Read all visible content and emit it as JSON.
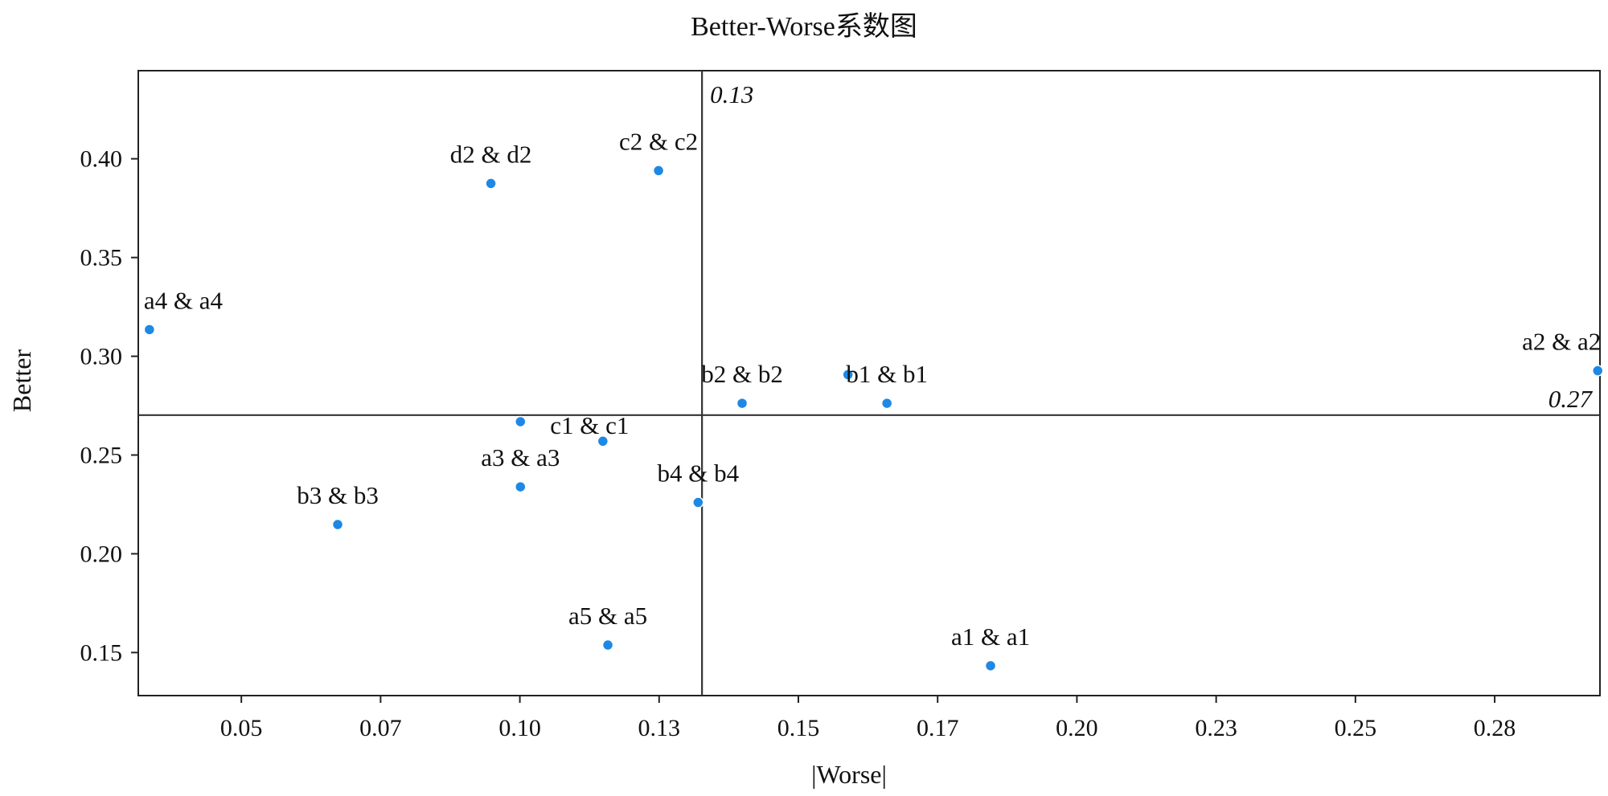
{
  "chart_data": {
    "type": "scatter",
    "title": "Better-Worse系数图",
    "xlabel": "|Worse|",
    "ylabel": "Better",
    "xlim": [
      0.0315,
      0.2939
    ],
    "ylim": [
      0.1282,
      0.4446
    ],
    "x_ticks": [
      0.05,
      0.075,
      0.1,
      0.125,
      0.15,
      0.175,
      0.2,
      0.225,
      0.25,
      0.275
    ],
    "x_tick_labels": [
      "0.05",
      "0.07",
      "0.10",
      "0.13",
      "0.15",
      "0.17",
      "0.20",
      "0.23",
      "0.25",
      "0.28"
    ],
    "y_ticks": [
      0.15,
      0.2,
      0.25,
      0.3,
      0.35,
      0.4
    ],
    "y_tick_labels": [
      "0.15",
      "0.20",
      "0.25",
      "0.30",
      "0.35",
      "0.40"
    ],
    "grid": false,
    "point_color": "#1e88e5",
    "reference_lines": {
      "vertical": {
        "value": 0.1327,
        "label": "0.13"
      },
      "horizontal": {
        "value": 0.2702,
        "label": "0.27"
      }
    },
    "points": [
      {
        "label": "a4 & a4",
        "x": 0.0335,
        "y": 0.3135
      },
      {
        "label": "d2 & d2",
        "x": 0.0948,
        "y": 0.3875
      },
      {
        "label": "c2 & c2",
        "x": 0.1249,
        "y": 0.394
      },
      {
        "label": "c1 & c1",
        "x": 0.1001,
        "y": 0.2669
      },
      {
        "label": "",
        "x": 0.1149,
        "y": 0.257
      },
      {
        "label": "a3 & a3",
        "x": 0.1001,
        "y": 0.2339
      },
      {
        "label": "b3 & b3",
        "x": 0.0673,
        "y": 0.2148
      },
      {
        "label": "b4 & b4",
        "x": 0.132,
        "y": 0.226
      },
      {
        "label": "a5 & a5",
        "x": 0.1158,
        "y": 0.1538
      },
      {
        "label": "b2 & b2",
        "x": 0.1399,
        "y": 0.2762
      },
      {
        "label": "",
        "x": 0.1589,
        "y": 0.2907
      },
      {
        "label": "b1 & b1",
        "x": 0.1659,
        "y": 0.2762
      },
      {
        "label": "a1 & a1",
        "x": 0.1845,
        "y": 0.1433
      },
      {
        "label": "a2 & a2",
        "x": 0.2935,
        "y": 0.2927
      }
    ]
  }
}
